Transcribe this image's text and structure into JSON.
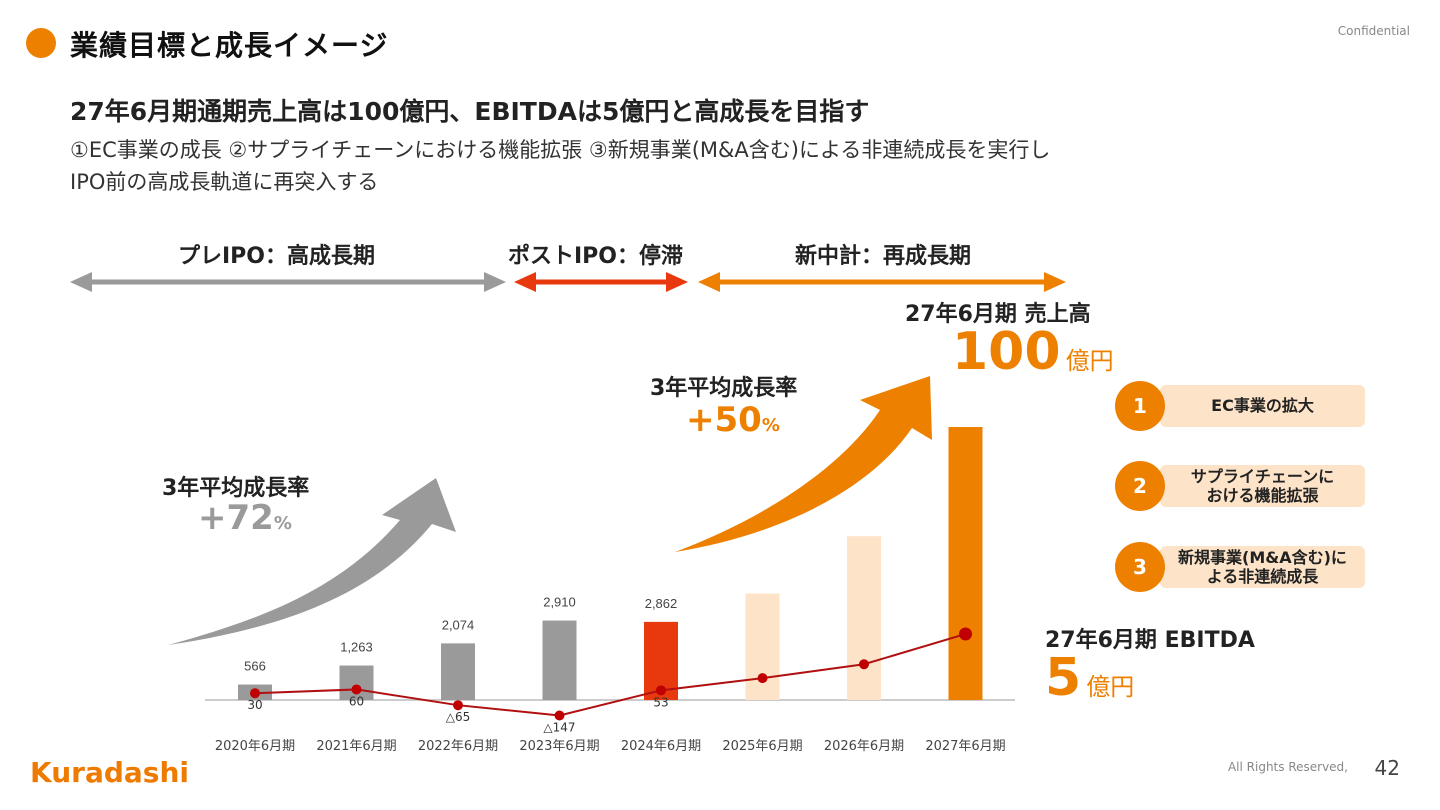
{
  "header": {
    "title": "業績目標と成長イメージ",
    "confidential": "Confidential"
  },
  "headline": "27年6月期通期売上高は100億円、EBITDAは5億円と高成長を目指す",
  "subline1": "①EC事業の成長 ②サプライチェーンにおける機能拡張 ③新規事業(M&A含む)による非連続成長を実行し",
  "subline2": "IPO前の高成長軌道に再突入する",
  "phases": [
    {
      "label": "プレIPO：高成長期",
      "color": "#9a9a9a"
    },
    {
      "label": "ポストIPO：停滞",
      "color": "#e8380d"
    },
    {
      "label": "新中計：再成長期",
      "color": "#ee8000"
    }
  ],
  "growth_left": {
    "label": "3年平均成長率",
    "value": "+72",
    "unit": "%"
  },
  "growth_right": {
    "label": "3年平均成長率",
    "value": "+50",
    "unit": "%"
  },
  "target_sales": {
    "label": "27年6月期 売上高",
    "value": "100",
    "unit": "億円"
  },
  "target_ebitda": {
    "label": "27年6月期 EBITDA",
    "value": "5",
    "unit": "億円"
  },
  "initiatives": [
    {
      "num": "1",
      "text": "EC事業の拡大"
    },
    {
      "num": "2",
      "text_line1": "サプライチェーンに",
      "text_line2": "おける機能拡張"
    },
    {
      "num": "3",
      "text_line1": "新規事業(M&A含む)に",
      "text_line2": "よる非連続成長"
    }
  ],
  "chart_data": {
    "type": "bar",
    "categories": [
      "2020年6月期",
      "2021年6月期",
      "2022年6月期",
      "2023年6月期",
      "2024年6月期",
      "2025年6月期",
      "2026年6月期",
      "2027年6月期"
    ],
    "series": [
      {
        "values": [
          566,
          1263,
          2074,
          2910,
          2862,
          null,
          null,
          10000
        ],
        "labels": [
          "566",
          "1,263",
          "2,074",
          "2,910",
          "2,862",
          "",
          "",
          ""
        ],
        "colors": [
          "#9a9a9a",
          "#9a9a9a",
          "#9a9a9a",
          "#9a9a9a",
          "#e8380d",
          "#fde3c8",
          "#fde3c8",
          "#ee8000"
        ]
      },
      {
        "values": [
          30,
          60,
          -65,
          -147,
          53,
          null,
          null,
          500
        ],
        "labels": [
          "30",
          "60",
          "△65",
          "△147",
          "53",
          "",
          "",
          ""
        ],
        "color": "#c00000"
      }
    ],
    "projected_bars": [
      null,
      null,
      null,
      null,
      null,
      3900,
      6000,
      null
    ],
    "projected_line": [
      null,
      null,
      null,
      null,
      null,
      150,
      260,
      null
    ]
  },
  "footer": {
    "logo": "Kuradashi",
    "rights": "All Rights Reserved,",
    "page": "42"
  }
}
